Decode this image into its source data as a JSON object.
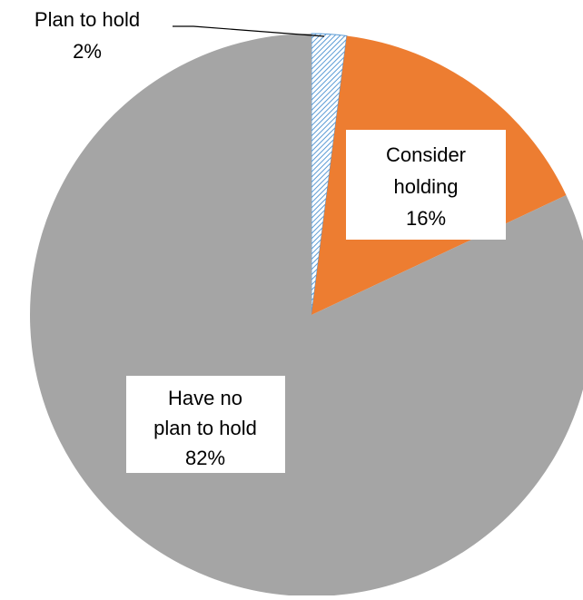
{
  "chart_data": {
    "type": "pie",
    "title": "",
    "slices": [
      {
        "label": "Plan to hold",
        "value": 2,
        "value_label": "2%",
        "color": "#5b9bd5",
        "pattern": "diagonal-hatch"
      },
      {
        "label": "Consider holding",
        "label_lines": [
          "Consider",
          "holding"
        ],
        "value": 16,
        "value_label": "16%",
        "color": "#ed7d31"
      },
      {
        "label": "Have no plan to hold",
        "label_lines": [
          "Have no",
          "plan to hold"
        ],
        "value": 82,
        "value_label": "82%",
        "color": "#a5a5a5"
      }
    ],
    "start_angle": "12 o'clock",
    "direction": "clockwise",
    "legend": "none"
  }
}
